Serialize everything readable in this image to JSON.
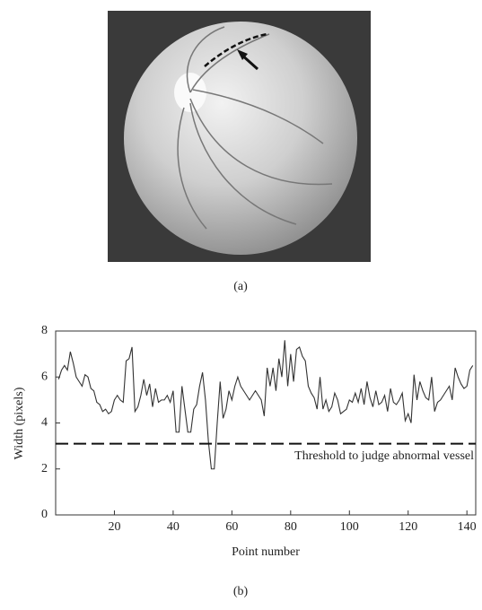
{
  "caption_a": "(a)",
  "caption_b": "(b)",
  "chart_data": {
    "type": "line",
    "xlabel": "Point number",
    "ylabel": "Width (pixels)",
    "x": [
      1,
      2,
      3,
      4,
      5,
      6,
      7,
      8,
      9,
      10,
      11,
      12,
      13,
      14,
      15,
      16,
      17,
      18,
      19,
      20,
      21,
      22,
      23,
      24,
      25,
      26,
      27,
      28,
      29,
      30,
      31,
      32,
      33,
      34,
      35,
      36,
      37,
      38,
      39,
      40,
      41,
      42,
      43,
      44,
      45,
      46,
      47,
      48,
      49,
      50,
      51,
      52,
      53,
      54,
      55,
      56,
      57,
      58,
      59,
      60,
      61,
      62,
      63,
      64,
      65,
      66,
      67,
      68,
      69,
      70,
      71,
      72,
      73,
      74,
      75,
      76,
      77,
      78,
      79,
      80,
      81,
      82,
      83,
      84,
      85,
      86,
      87,
      88,
      89,
      90,
      91,
      92,
      93,
      94,
      95,
      96,
      97,
      98,
      99,
      100,
      101,
      102,
      103,
      104,
      105,
      106,
      107,
      108,
      109,
      110,
      111,
      112,
      113,
      114,
      115,
      116,
      117,
      118,
      119,
      120,
      121,
      122,
      123,
      124,
      125,
      126,
      127,
      128,
      129,
      130,
      131,
      132,
      133,
      134,
      135,
      136,
      137,
      138,
      139,
      140,
      141,
      142
    ],
    "series": [
      {
        "color": "#333333",
        "values": [
          5.9,
          6.3,
          6.5,
          6.3,
          7.1,
          6.6,
          6.0,
          5.8,
          5.6,
          6.1,
          6.0,
          5.5,
          5.4,
          4.9,
          4.8,
          4.5,
          4.6,
          4.4,
          4.5,
          5.0,
          5.2,
          5.0,
          4.9,
          6.7,
          6.8,
          7.3,
          4.5,
          4.7,
          5.2,
          5.9,
          5.2,
          5.7,
          4.7,
          5.5,
          4.9,
          5.0,
          5.0,
          5.2,
          4.9,
          5.4,
          3.6,
          3.6,
          5.6,
          4.6,
          3.6,
          3.6,
          4.6,
          4.8,
          5.6,
          6.2,
          5.0,
          3.2,
          2.0,
          2.0,
          4.0,
          5.8,
          4.2,
          4.6,
          5.4,
          5.0,
          5.6,
          6.0,
          5.6,
          5.4,
          5.2,
          5.0,
          5.2,
          5.4,
          5.2,
          5.0,
          4.3,
          6.4,
          5.6,
          6.4,
          5.4,
          6.8,
          6.0,
          7.6,
          5.6,
          7.0,
          5.8,
          7.2,
          7.3,
          6.9,
          6.7,
          5.6,
          5.3,
          5.1,
          4.6,
          6.0,
          4.6,
          5.0,
          4.5,
          4.7,
          5.3,
          5.0,
          4.4,
          4.5,
          4.6,
          5.0,
          4.9,
          5.3,
          4.9,
          5.5,
          4.8,
          5.8,
          5.1,
          4.7,
          5.4,
          4.8,
          4.9,
          5.2,
          4.5,
          5.5,
          4.9,
          4.8,
          5.0,
          5.3,
          4.1,
          4.4,
          4.0,
          6.1,
          5.0,
          5.8,
          5.4,
          5.1,
          5.0,
          6.0,
          4.5,
          4.9,
          5.0,
          5.2,
          5.4,
          5.6,
          5.0,
          6.4,
          6.0,
          5.7,
          5.5,
          5.6,
          6.3,
          6.5
        ]
      }
    ],
    "threshold": {
      "value": 3.1,
      "label": "Threshold to judge abnormal vessel"
    },
    "xlim": [
      0,
      143
    ],
    "ylim": [
      0,
      8
    ],
    "xticks": [
      20,
      40,
      60,
      80,
      100,
      120,
      140
    ],
    "yticks": [
      0,
      2,
      4,
      6,
      8
    ]
  }
}
